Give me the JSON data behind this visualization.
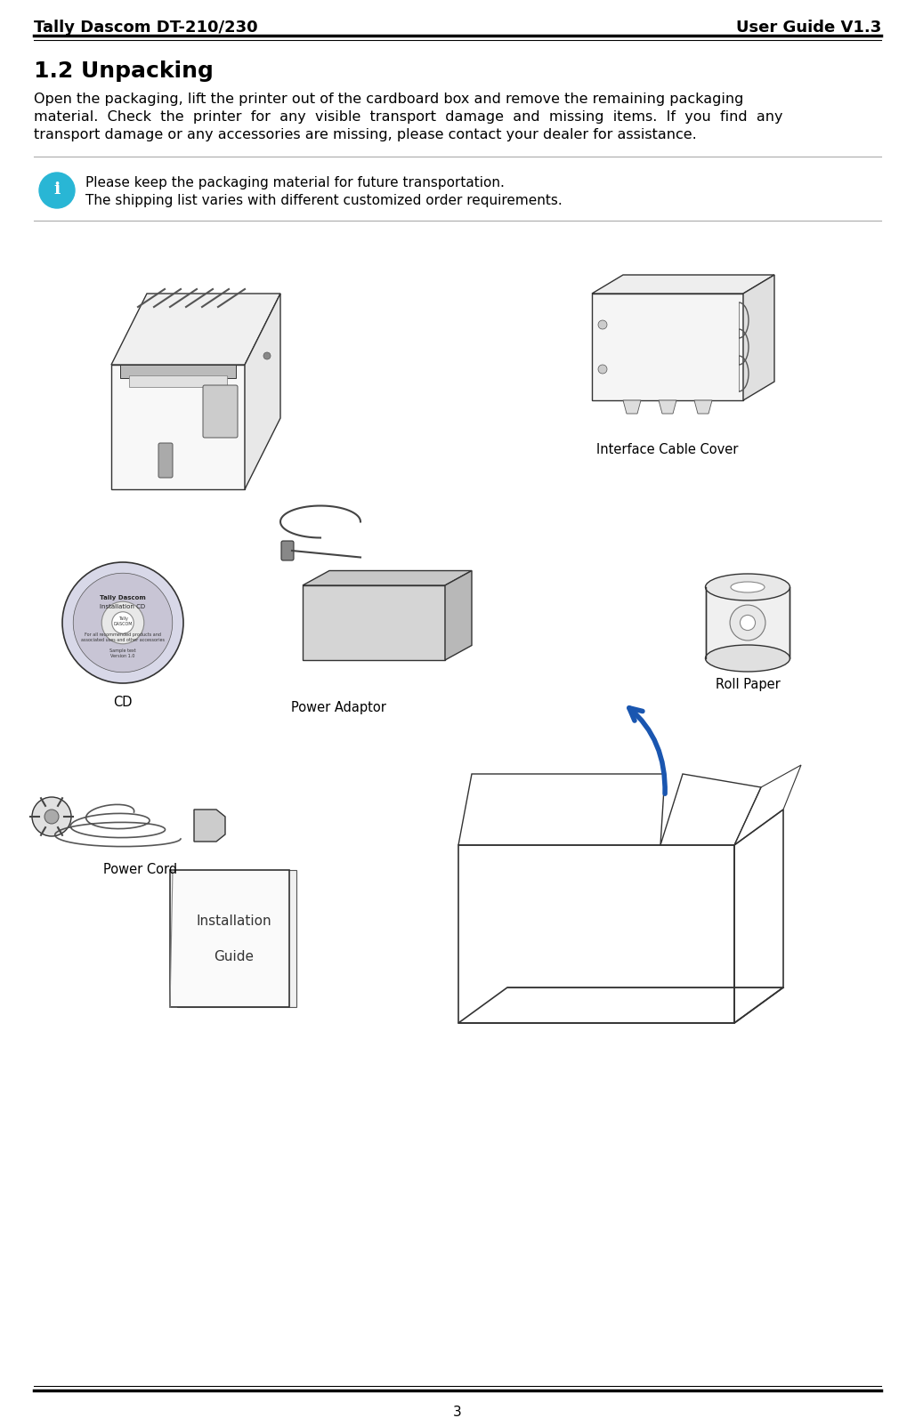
{
  "header_left": "Tally Dascom DT-210/230",
  "header_right": "User Guide V1.3",
  "section_title": "1.2 Unpacking",
  "body_text_line1": "Open the packaging, lift the printer out of the cardboard box and remove the remaining packaging",
  "body_text_line2": "material.  Check  the  printer  for  any  visible  transport  damage  and  missing  items.  If  you  find  any",
  "body_text_line3": "transport damage or any accessories are missing, please contact your dealer for assistance.",
  "note_line1": "Please keep the packaging material for future transportation.",
  "note_line2": "The shipping list varies with different customized order requirements.",
  "label_interface": "Interface Cable Cover",
  "label_roll": "Roll Paper",
  "label_power_adaptor": "Power Adaptor",
  "label_cd": "CD",
  "label_power_cord": "Power Cord",
  "page_number": "3",
  "bg_color": "#ffffff",
  "header_font_color": "#000000",
  "title_font_color": "#000000",
  "body_font_color": "#000000",
  "note_font_color": "#000000",
  "info_circle_color": "#29b6d5",
  "info_icon_color": "#ffffff",
  "header_fontsize": 13,
  "title_fontsize": 18,
  "body_fontsize": 11.5,
  "note_fontsize": 11,
  "label_fontsize": 10.5,
  "page_fontsize": 11
}
